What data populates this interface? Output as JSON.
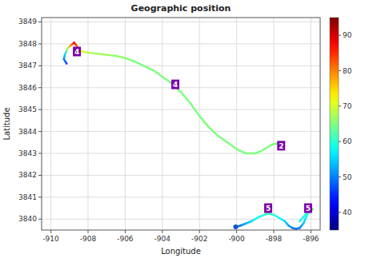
{
  "chart_data": {
    "type": "line",
    "title": "Geographic position",
    "x_label": "Longitude",
    "y_label": "Latitude",
    "xlim": [
      -910.5,
      -895.5
    ],
    "ylim": [
      3839.5,
      3849.2
    ],
    "xticks": [
      -910,
      -908,
      -906,
      -904,
      -902,
      -900,
      -898,
      -896
    ],
    "yticks": [
      3840,
      3841,
      3842,
      3843,
      3844,
      3845,
      3846,
      3847,
      3848,
      3849
    ],
    "grid": true,
    "cbar_range": [
      35,
      95
    ],
    "cbar_ticks": [
      40,
      50,
      60,
      70,
      80,
      90
    ],
    "series": [
      {
        "type": "line",
        "x": [
          -909.15,
          -909.3,
          -909.25,
          -909.1,
          -908.9,
          -908.75,
          -908.6,
          -908.5
        ],
        "values": [
          3847.1,
          3847.3,
          3847.5,
          3847.8,
          3847.95,
          3848.05,
          3847.9,
          3847.7
        ],
        "color_values": [
          46,
          50,
          55,
          68,
          80,
          88,
          82,
          72
        ]
      },
      {
        "type": "line",
        "x": [
          -908.5,
          -908.3,
          -908.0,
          -907.5,
          -907.0,
          -906.5,
          -906.2,
          -906.0,
          -905.5,
          -905.0,
          -904.5,
          -904.0,
          -903.5,
          -903.0,
          -902.5,
          -902.0,
          -901.5,
          -901.0,
          -900.5,
          -900.0,
          -899.5,
          -899.0,
          -898.7,
          -898.5,
          -898.3,
          -898.1,
          -897.9,
          -897.7
        ],
        "values": [
          3847.7,
          3847.65,
          3847.6,
          3847.55,
          3847.5,
          3847.45,
          3847.4,
          3847.35,
          3847.2,
          3847.0,
          3846.8,
          3846.5,
          3846.2,
          3845.8,
          3845.3,
          3844.7,
          3844.2,
          3843.8,
          3843.5,
          3843.2,
          3843.0,
          3843.0,
          3843.1,
          3843.2,
          3843.3,
          3843.4,
          3843.45,
          3843.4
        ],
        "color_values": [
          72,
          70,
          68,
          67,
          67,
          66,
          66,
          66,
          65,
          65,
          65,
          65,
          65,
          65,
          65,
          65,
          65,
          65,
          65,
          65,
          65,
          65,
          65,
          65,
          65,
          65,
          65,
          65
        ]
      },
      {
        "type": "line",
        "x": [
          -900.0,
          -899.8,
          -899.5,
          -899.2,
          -899.0,
          -898.8,
          -898.5,
          -898.3,
          -898.0,
          -897.8,
          -897.6,
          -897.4,
          -897.2,
          -897.0,
          -896.8,
          -896.6,
          -896.5,
          -896.4,
          -896.3,
          -896.2,
          -896.1,
          -896.0,
          -895.9,
          -896.0,
          -896.1,
          -896.2,
          -896.4,
          -896.6
        ],
        "values": [
          3839.65,
          3839.7,
          3839.8,
          3839.9,
          3840.0,
          3840.1,
          3840.2,
          3840.25,
          3840.2,
          3840.1,
          3840.0,
          3839.9,
          3839.7,
          3839.6,
          3839.55,
          3839.6,
          3839.7,
          3839.8,
          3840.0,
          3840.2,
          3840.35,
          3840.4,
          3840.45,
          3840.5,
          3840.45,
          3840.3,
          3840.1,
          3839.9
        ],
        "color_values": [
          47,
          50,
          53,
          55,
          57,
          58,
          60,
          61,
          60,
          59,
          57,
          55,
          52,
          50,
          49,
          50,
          52,
          54,
          56,
          58,
          60,
          62,
          63,
          64,
          63,
          61,
          59,
          57
        ]
      },
      {
        "type": "scatter",
        "color": "#1155cc",
        "x": [
          -900.05
        ],
        "values": [
          3839.65
        ]
      }
    ],
    "annotations": [
      {
        "text": "4",
        "x": -908.6,
        "y": 3847.65,
        "color": "#7b00aa"
      },
      {
        "text": "4",
        "x": -903.3,
        "y": 3846.15,
        "color": "#7b00aa"
      },
      {
        "text": "2",
        "x": -897.6,
        "y": 3843.35,
        "color": "#7b00aa"
      },
      {
        "text": "5",
        "x": -898.3,
        "y": 3840.5,
        "color": "#7b00aa"
      },
      {
        "text": "5",
        "x": -896.15,
        "y": 3840.5,
        "color": "#7b00aa"
      }
    ]
  }
}
